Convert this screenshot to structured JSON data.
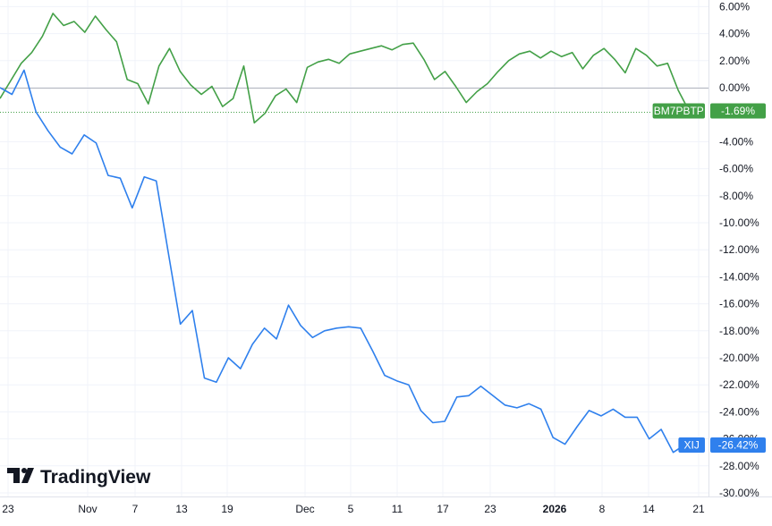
{
  "chart_data": {
    "type": "line",
    "watermark": "TradingView",
    "grid": true,
    "x_tick_labels": [
      "23",
      "Nov",
      "7",
      "13",
      "19",
      "Dec",
      "5",
      "11",
      "17",
      "23",
      "2026",
      "8",
      "14",
      "21"
    ],
    "y_tick_labels": [
      "6.00%",
      "4.00%",
      "2.00%",
      "0.00%",
      "-4.00%",
      "-6.00%",
      "-8.00%",
      "-10.00%",
      "-12.00%",
      "-14.00%",
      "-16.00%",
      "-18.00%",
      "-20.00%",
      "-22.00%",
      "-24.00%",
      "-26.00%",
      "-28.00%",
      "-30.00%"
    ],
    "ylim": [
      -30,
      6
    ],
    "series": [
      {
        "name": "BM7PBTP",
        "color": "#43a047",
        "last_value": "-1.69%",
        "values": [
          -0.8,
          0.5,
          1.8,
          2.6,
          3.8,
          5.5,
          4.6,
          4.9,
          4.1,
          5.3,
          4.3,
          3.4,
          0.6,
          0.3,
          -1.2,
          1.6,
          2.9,
          1.2,
          0.2,
          -0.5,
          0.1,
          -1.4,
          -0.8,
          1.6,
          -2.6,
          -1.9,
          -0.6,
          -0.1,
          -1.1,
          1.5,
          1.9,
          2.1,
          1.8,
          2.5,
          2.7,
          2.9,
          3.1,
          2.8,
          3.2,
          3.3,
          2.1,
          0.6,
          1.2,
          0.1,
          -1.1,
          -0.3,
          0.3,
          1.2,
          2.0,
          2.5,
          2.7,
          2.2,
          2.7,
          2.3,
          2.6,
          1.4,
          2.4,
          2.9,
          2.1,
          1.1,
          2.9,
          2.4,
          1.6,
          1.8,
          -0.2,
          -1.69
        ]
      },
      {
        "name": "XIJ",
        "color": "#2f80ed",
        "last_value": "-26.42%",
        "values": [
          0.0,
          -0.5,
          1.3,
          -1.8,
          -3.2,
          -4.4,
          -4.9,
          -3.5,
          -4.1,
          -6.5,
          -6.7,
          -8.9,
          -6.6,
          -6.9,
          -12.2,
          -17.5,
          -16.5,
          -21.5,
          -21.8,
          -20.0,
          -20.8,
          -19.0,
          -17.8,
          -18.6,
          -16.1,
          -17.6,
          -18.5,
          -18.0,
          -17.8,
          -17.7,
          -17.8,
          -19.5,
          -21.3,
          -21.7,
          -22.0,
          -23.9,
          -24.8,
          -24.7,
          -22.9,
          -22.8,
          -22.1,
          -22.8,
          -23.5,
          -23.7,
          -23.4,
          -23.8,
          -25.9,
          -26.4,
          -25.1,
          -23.9,
          -24.3,
          -23.8,
          -24.4,
          -24.4,
          -26.0,
          -25.3,
          -27.0,
          -26.42
        ]
      }
    ]
  }
}
